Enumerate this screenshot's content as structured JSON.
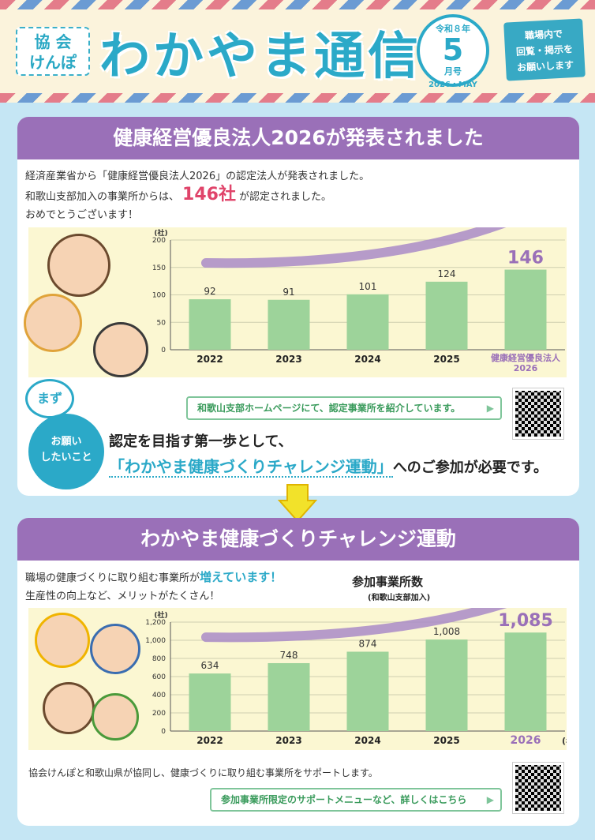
{
  "header": {
    "kyokai_line1": "協 会",
    "kyokai_line2": "けんぽ",
    "title": "わかやま通信",
    "stamp_era": "令和８年",
    "stamp_month": "5",
    "stamp_gatsu": "月号",
    "stamp_year": "2026・MAY",
    "notice_l1": "職場内で",
    "notice_l2": "回覧・掲示を",
    "notice_l3": "お願いします"
  },
  "section1": {
    "banner": "健康経営優良法人2026が発表されました",
    "intro_l1": "経済産業省から「健康経営優良法人2026」の認定法人が発表されました。",
    "intro_l2a": "和歌山支部加入の事業所からは、",
    "intro_badge": "146社",
    "intro_l2b": "が認定されました。",
    "intro_l3": "おめでとうございます！",
    "link": "和歌山支部ホームページにて、認定事業所を紹介しています。",
    "mazu": "まず",
    "onegai_l1": "お願い",
    "onegai_l2": "したいこと",
    "ask1": "認定を目指す第一歩として、",
    "ask2_hl": "「わかやま健康づくりチャレンジ運動」",
    "ask2_rest": "へのご参加が必要です。"
  },
  "section2": {
    "banner": "わかやま健康づくりチャレンジ運動",
    "intro_l1a": "職場の健康づくりに取り組む事業所が",
    "intro_l1b": "増えています！",
    "intro_l2": "生産性の向上など、メリットがたくさん！",
    "subtitle": "参加事業所数",
    "subtitle_small": "(和歌山支部加入)",
    "support": "協会けんぽと和歌山県が協同し、健康づくりに取り組む事業所をサポートします。",
    "link": "参加事業所限定のサポートメニューなど、詳しくはこちら"
  },
  "colors": {
    "accent": "#2ba9c8",
    "purple": "#9a70b8",
    "bar": "#9dd39a",
    "highlight": "#9a70b8"
  },
  "chart_data": [
    {
      "type": "bar",
      "categories": [
        "2022",
        "2023",
        "2024",
        "2025",
        "健康経営優良法人 2026"
      ],
      "values": [
        92,
        91,
        101,
        124,
        146
      ],
      "value_labels": [
        "92",
        "91",
        "101",
        "124",
        "146"
      ],
      "ylabel": "(社)",
      "ylim": [
        0,
        200
      ],
      "yticks": [
        0,
        50,
        100,
        150,
        200
      ],
      "highlight_last": true
    },
    {
      "type": "bar",
      "categories": [
        "2022",
        "2023",
        "2024",
        "2025",
        "2026"
      ],
      "values": [
        634,
        748,
        874,
        1008,
        1085
      ],
      "value_labels": [
        "634",
        "748",
        "874",
        "1,008",
        "1,085"
      ],
      "ylabel": "(社)",
      "xunit": "(年度)",
      "ylim": [
        0,
        1200
      ],
      "yticks": [
        0,
        200,
        400,
        600,
        800,
        "1,000",
        "1,200"
      ],
      "highlight_last": true
    }
  ]
}
